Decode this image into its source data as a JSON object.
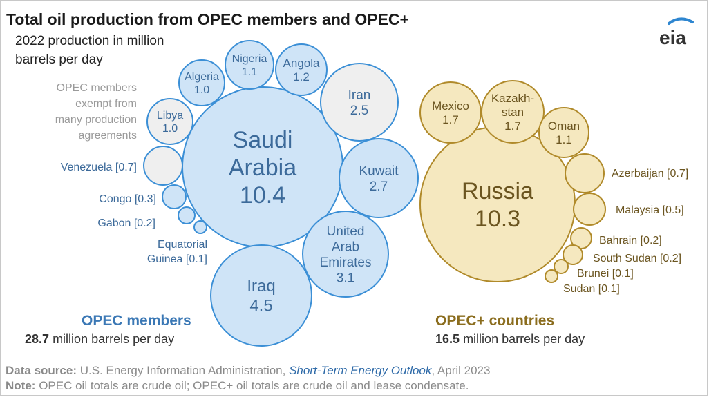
{
  "title": "Total oil production from OPEC members and OPEC+",
  "subtitle": "2022 production in million barrels per day",
  "logo_text": "eia",
  "exempt_note": "OPEC members exempt from many production agreements",
  "groups": {
    "opec": {
      "label": "OPEC members",
      "total_value": "28.7",
      "total_unit": "million barrels per day"
    },
    "opec_plus": {
      "label": "OPEC+ countries",
      "total_value": "16.5",
      "total_unit": "million barrels per day"
    }
  },
  "footer": {
    "source_label": "Data source:",
    "source_text": "U.S. Energy Information Administration,",
    "source_pub": "Short-Term Energy Outlook",
    "source_date": ", April 2023",
    "note_label": "Note:",
    "note_text": "OPEC oil totals are crude oil; OPEC+ oil totals are crude oil and lease condensate."
  },
  "colors": {
    "opec_fill": "#cfe4f7",
    "opec_stroke": "#3b8fd6",
    "opec_text": "#3c6a9a",
    "exempt_fill": "#efefef",
    "exempt_stroke": "#3b8fd6",
    "plus_fill": "#f5e8bf",
    "plus_stroke": "#b08a2a",
    "plus_text": "#6b5520",
    "group_opec": "#3b78b5",
    "group_plus": "#8b6d1e"
  },
  "chart_data": {
    "type": "bubble",
    "unit": "million barrels per day",
    "series": [
      {
        "name": "OPEC members",
        "points": [
          {
            "label": "Saudi Arabia",
            "value": 10.4,
            "exempt": false
          },
          {
            "label": "Iraq",
            "value": 4.5,
            "exempt": false
          },
          {
            "label": "United Arab Emirates",
            "value": 3.1,
            "exempt": false
          },
          {
            "label": "Kuwait",
            "value": 2.7,
            "exempt": false
          },
          {
            "label": "Iran",
            "value": 2.5,
            "exempt": true
          },
          {
            "label": "Angola",
            "value": 1.2,
            "exempt": false
          },
          {
            "label": "Nigeria",
            "value": 1.1,
            "exempt": false
          },
          {
            "label": "Algeria",
            "value": 1.0,
            "exempt": false
          },
          {
            "label": "Libya",
            "value": 1.0,
            "exempt": true
          },
          {
            "label": "Venezuela",
            "value": 0.7,
            "exempt": true
          },
          {
            "label": "Congo",
            "value": 0.3,
            "exempt": false
          },
          {
            "label": "Gabon",
            "value": 0.2,
            "exempt": false
          },
          {
            "label": "Equatorial Guinea",
            "value": 0.1,
            "exempt": false
          }
        ]
      },
      {
        "name": "OPEC+ countries",
        "points": [
          {
            "label": "Russia",
            "value": 10.3
          },
          {
            "label": "Mexico",
            "value": 1.7
          },
          {
            "label": "Kazakhstan",
            "value": 1.7
          },
          {
            "label": "Oman",
            "value": 1.1
          },
          {
            "label": "Azerbaijan",
            "value": 0.7
          },
          {
            "label": "Malaysia",
            "value": 0.5
          },
          {
            "label": "Bahrain",
            "value": 0.2
          },
          {
            "label": "South Sudan",
            "value": 0.2
          },
          {
            "label": "Brunei",
            "value": 0.1
          },
          {
            "label": "Sudan",
            "value": 0.1
          }
        ]
      }
    ]
  }
}
